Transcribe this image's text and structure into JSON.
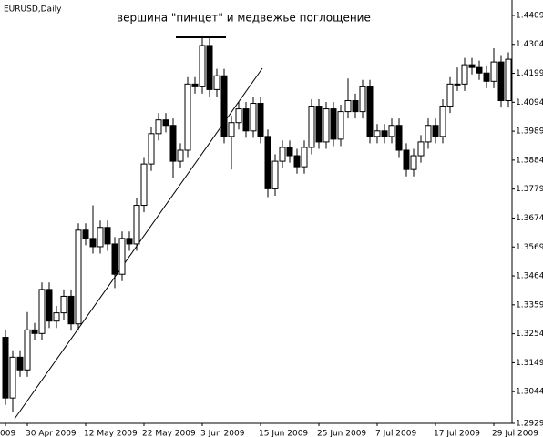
{
  "chart_data": {
    "type": "candlestick",
    "title": "вершина \"пинцет\" и медвежье поглощение",
    "symbol": "EURUSD,Daily",
    "categories": [
      "009",
      null,
      null,
      "30 Apr 2009",
      null,
      null,
      null,
      null,
      null,
      null,
      null,
      "12 May 2009",
      null,
      null,
      null,
      null,
      null,
      null,
      null,
      "22 May 2009",
      null,
      null,
      null,
      null,
      null,
      null,
      null,
      "3 Jun 2009",
      null,
      null,
      null,
      null,
      null,
      null,
      null,
      "15 Jun 2009",
      null,
      null,
      null,
      null,
      null,
      null,
      null,
      "25 Jun 2009",
      null,
      null,
      null,
      null,
      null,
      null,
      null,
      "7 Jul 2009",
      null,
      null,
      null,
      null,
      null,
      null,
      null,
      "17 Jul 2009",
      null,
      null,
      null,
      null,
      null,
      null,
      null,
      "29 Jul 2009",
      null,
      null
    ],
    "open": [
      1.3241,
      1.3021,
      1.3169,
      1.3123,
      1.3268,
      1.3255,
      1.3415,
      1.33,
      1.333,
      1.339,
      1.329,
      1.363,
      1.36,
      1.357,
      1.364,
      1.358,
      1.347,
      1.36,
      1.358,
      1.372,
      1.387,
      1.398,
      1.403,
      1.401,
      1.388,
      1.392,
      1.416,
      1.415,
      1.43,
      1.414,
      1.419,
      1.397,
      1.402,
      1.407,
      1.399,
      1.409,
      1.397,
      1.378,
      1.388,
      1.393,
      1.39,
      1.386,
      1.393,
      1.408,
      1.395,
      1.407,
      1.396,
      1.406,
      1.41,
      1.406,
      1.415,
      1.397,
      1.399,
      1.397,
      1.401,
      1.392,
      1.385,
      1.39,
      1.395,
      1.401,
      1.397,
      1.408,
      1.416,
      1.416,
      1.423,
      1.422,
      1.42,
      1.417,
      1.424,
      1.41
    ],
    "high": [
      1.3266,
      1.3194,
      1.3194,
      1.3333,
      1.3293,
      1.344,
      1.344,
      1.3355,
      1.3415,
      1.3415,
      1.3655,
      1.3655,
      1.372,
      1.3665,
      1.3665,
      1.3605,
      1.3625,
      1.3625,
      1.3745,
      1.3895,
      1.4005,
      1.4055,
      1.4055,
      1.4035,
      1.3945,
      1.4185,
      1.4185,
      1.433,
      1.433,
      1.4215,
      1.4215,
      1.4045,
      1.4095,
      1.4095,
      1.4115,
      1.4115,
      1.3995,
      1.3905,
      1.3955,
      1.3955,
      1.3925,
      1.3955,
      1.4105,
      1.4105,
      1.4095,
      1.4095,
      1.4085,
      1.418,
      1.4125,
      1.4175,
      1.4175,
      1.4015,
      1.4015,
      1.4035,
      1.4035,
      1.3945,
      1.3925,
      1.3975,
      1.4035,
      1.4035,
      1.4105,
      1.4185,
      1.422,
      1.4255,
      1.4255,
      1.4245,
      1.4225,
      1.429,
      1.4265,
      1.4275
    ],
    "low": [
      1.2996,
      1.2972,
      1.3098,
      1.3098,
      1.323,
      1.323,
      1.3275,
      1.3275,
      1.3305,
      1.3265,
      1.3265,
      1.3575,
      1.3545,
      1.3545,
      1.3555,
      1.342,
      1.3445,
      1.3555,
      1.3555,
      1.3695,
      1.3845,
      1.3955,
      1.3985,
      1.382,
      1.3855,
      1.3895,
      1.4125,
      1.4125,
      1.4115,
      1.4115,
      1.3945,
      1.385,
      1.3995,
      1.3965,
      1.3965,
      1.3945,
      1.375,
      1.3755,
      1.3855,
      1.3875,
      1.3835,
      1.3835,
      1.3905,
      1.3925,
      1.3925,
      1.3935,
      1.3935,
      1.4035,
      1.4035,
      1.4035,
      1.3945,
      1.3945,
      1.3945,
      1.3945,
      1.3895,
      1.3825,
      1.3825,
      1.3875,
      1.3925,
      1.3945,
      1.3945,
      1.4055,
      1.4135,
      1.4135,
      1.4195,
      1.4175,
      1.4145,
      1.4145,
      1.4075,
      1.4075
    ],
    "close": [
      1.3021,
      1.3169,
      1.3123,
      1.3268,
      1.3255,
      1.3415,
      1.33,
      1.333,
      1.339,
      1.329,
      1.363,
      1.36,
      1.357,
      1.364,
      1.358,
      1.347,
      1.36,
      1.358,
      1.372,
      1.387,
      1.398,
      1.403,
      1.401,
      1.388,
      1.392,
      1.416,
      1.415,
      1.43,
      1.414,
      1.419,
      1.397,
      1.402,
      1.407,
      1.399,
      1.409,
      1.397,
      1.378,
      1.388,
      1.393,
      1.39,
      1.386,
      1.393,
      1.408,
      1.395,
      1.407,
      1.396,
      1.406,
      1.41,
      1.406,
      1.415,
      1.397,
      1.399,
      1.397,
      1.401,
      1.392,
      1.385,
      1.39,
      1.395,
      1.401,
      1.397,
      1.408,
      1.416,
      1.416,
      1.423,
      1.422,
      1.42,
      1.417,
      1.424,
      1.41,
      1.425
    ],
    "up_color": "#ffffff",
    "down_color": "#000000",
    "ylim": [
      1.2929,
      1.4465
    ],
    "yticks": [
      1.2929,
      1.3044,
      1.3149,
      1.3254,
      1.3359,
      1.3464,
      1.3569,
      1.3674,
      1.3779,
      1.3884,
      1.3989,
      1.4094,
      1.4199,
      1.4304,
      1.4409
    ]
  }
}
